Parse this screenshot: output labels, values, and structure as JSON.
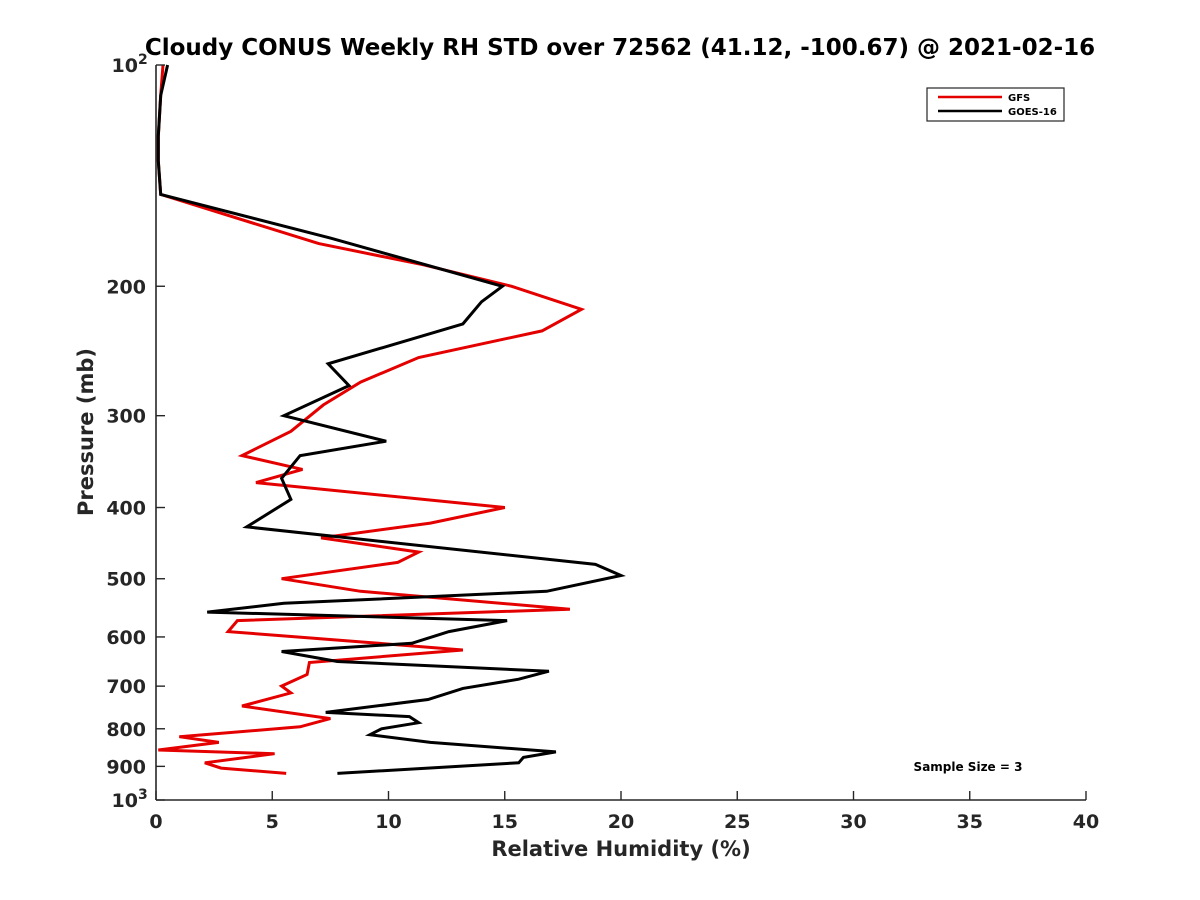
{
  "chart_data": {
    "type": "line",
    "title": "Cloudy CONUS Weekly RH STD over 72562 (41.12, -100.67) @ 2021-02-16",
    "xlabel": "Relative Humidity (%)",
    "ylabel": "Pressure (mb)",
    "xlim": [
      0,
      40
    ],
    "ylim": [
      100,
      1000
    ],
    "yscale": "log",
    "yreversed": true,
    "xticks": [
      0,
      5,
      10,
      15,
      20,
      25,
      30,
      35,
      40
    ],
    "xtick_labels": [
      "0",
      "5",
      "10",
      "15",
      "20",
      "25",
      "30",
      "35",
      "40"
    ],
    "yticks": [
      {
        "value": 100,
        "label": "10",
        "sup": "2"
      },
      {
        "value": 200,
        "label": "200",
        "sup": ""
      },
      {
        "value": 300,
        "label": "300",
        "sup": ""
      },
      {
        "value": 400,
        "label": "400",
        "sup": ""
      },
      {
        "value": 500,
        "label": "500",
        "sup": ""
      },
      {
        "value": 600,
        "label": "600",
        "sup": ""
      },
      {
        "value": 700,
        "label": "700",
        "sup": ""
      },
      {
        "value": 800,
        "label": "800",
        "sup": ""
      },
      {
        "value": 900,
        "label": "900",
        "sup": ""
      },
      {
        "value": 1000,
        "label": "10",
        "sup": "3"
      }
    ],
    "grid": false,
    "legend_position": "top-right",
    "annotation": "Sample Size = 3",
    "series": [
      {
        "name": "GFS",
        "color": "#e50000",
        "points": [
          [
            0.3,
            100
          ],
          [
            0.2,
            110
          ],
          [
            0.1,
            125
          ],
          [
            0.1,
            135
          ],
          [
            0.2,
            150
          ],
          [
            7.0,
            175
          ],
          [
            11.5,
            187
          ],
          [
            15.3,
            200
          ],
          [
            18.3,
            215
          ],
          [
            16.6,
            230
          ],
          [
            11.3,
            250
          ],
          [
            8.8,
            270
          ],
          [
            7.2,
            290
          ],
          [
            5.8,
            315
          ],
          [
            3.7,
            340
          ],
          [
            6.3,
            355
          ],
          [
            4.3,
            370
          ],
          [
            15.0,
            400
          ],
          [
            11.8,
            420
          ],
          [
            7.1,
            440
          ],
          [
            11.3,
            460
          ],
          [
            10.4,
            475
          ],
          [
            5.4,
            500
          ],
          [
            8.8,
            520
          ],
          [
            17.8,
            550
          ],
          [
            3.5,
            570
          ],
          [
            3.1,
            590
          ],
          [
            9.0,
            610
          ],
          [
            13.2,
            625
          ],
          [
            6.6,
            650
          ],
          [
            6.5,
            675
          ],
          [
            5.4,
            700
          ],
          [
            5.8,
            715
          ],
          [
            3.7,
            745
          ],
          [
            7.5,
            775
          ],
          [
            6.2,
            795
          ],
          [
            1.0,
            820
          ],
          [
            2.7,
            835
          ],
          [
            0.1,
            855
          ],
          [
            5.1,
            865
          ],
          [
            2.1,
            890
          ],
          [
            2.8,
            905
          ],
          [
            5.6,
            920
          ]
        ]
      },
      {
        "name": "GOES-16",
        "color": "#000000",
        "points": [
          [
            0.5,
            100
          ],
          [
            0.2,
            110
          ],
          [
            0.1,
            125
          ],
          [
            0.1,
            135
          ],
          [
            0.2,
            150
          ],
          [
            7.5,
            172
          ],
          [
            14.9,
            200
          ],
          [
            14.0,
            210
          ],
          [
            13.2,
            225
          ],
          [
            7.4,
            255
          ],
          [
            8.3,
            273
          ],
          [
            5.5,
            300
          ],
          [
            9.9,
            325
          ],
          [
            6.2,
            340
          ],
          [
            5.4,
            365
          ],
          [
            5.8,
            390
          ],
          [
            3.9,
            425
          ],
          [
            18.9,
            478
          ],
          [
            20.0,
            495
          ],
          [
            16.8,
            520
          ],
          [
            5.5,
            540
          ],
          [
            2.2,
            555
          ],
          [
            15.1,
            570
          ],
          [
            12.6,
            590
          ],
          [
            11.0,
            612
          ],
          [
            5.4,
            628
          ],
          [
            7.8,
            648
          ],
          [
            16.9,
            668
          ],
          [
            15.6,
            685
          ],
          [
            13.2,
            705
          ],
          [
            11.7,
            730
          ],
          [
            7.3,
            760
          ],
          [
            10.9,
            770
          ],
          [
            11.3,
            785
          ],
          [
            9.7,
            800
          ],
          [
            9.2,
            815
          ],
          [
            11.8,
            835
          ],
          [
            17.2,
            860
          ],
          [
            15.8,
            875
          ],
          [
            15.6,
            890
          ],
          [
            7.8,
            920
          ]
        ]
      }
    ]
  }
}
